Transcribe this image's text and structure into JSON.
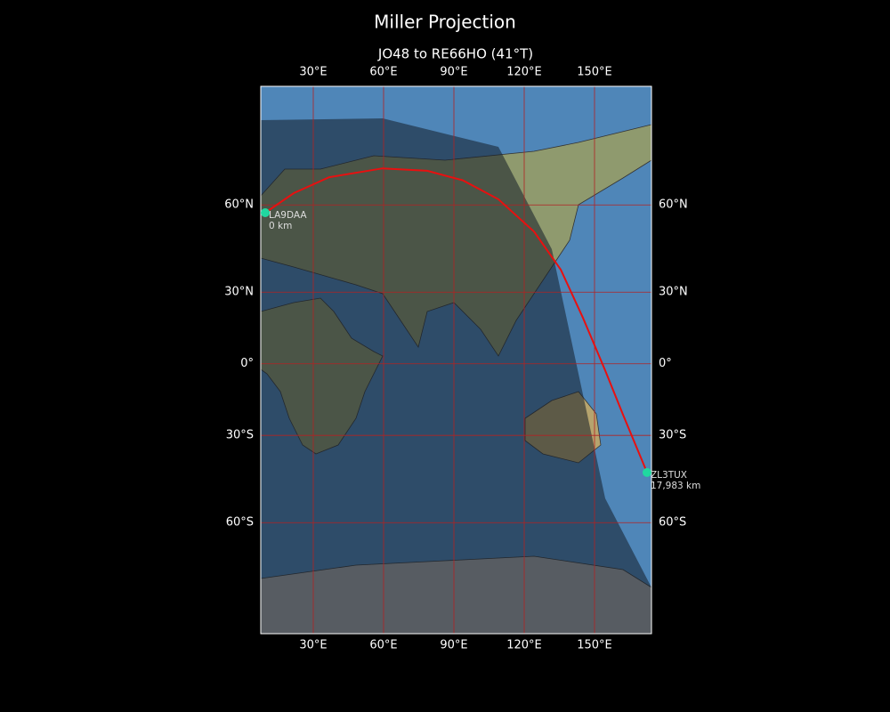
{
  "chart_data": {
    "type": "map",
    "projection": "miller",
    "title": "Miller Projection",
    "subtitle": "JO48 to RE66HO (41°T)",
    "xlim": [
      7.6,
      174.3
    ],
    "ylim": [
      -84.7,
      85.9
    ],
    "xticks": [
      {
        "value": 30,
        "label": "30°E"
      },
      {
        "value": 60,
        "label": "60°E"
      },
      {
        "value": 90,
        "label": "90°E"
      },
      {
        "value": 120,
        "label": "120°E"
      },
      {
        "value": 150,
        "label": "150°E"
      }
    ],
    "yticks": [
      {
        "value": 60,
        "label": "60°N"
      },
      {
        "value": 30,
        "label": "30°N"
      },
      {
        "value": 0,
        "label": "0°"
      },
      {
        "value": -30,
        "label": "30°S"
      },
      {
        "value": -60,
        "label": "60°S"
      }
    ],
    "grid": true,
    "grid_color": "#b22222",
    "route": {
      "color": "#e81010",
      "lon": [
        9.5,
        21.7,
        36.8,
        59.6,
        78.6,
        93.8,
        109.0,
        124.2,
        135.6,
        145.1,
        154.6,
        162.2,
        172.4
      ],
      "lat": [
        57.7,
        63.3,
        67.5,
        69.7,
        69.1,
        66.7,
        61.6,
        51.8,
        38.6,
        19.5,
        -3.0,
        -21.7,
        -43.9
      ]
    },
    "stations": [
      {
        "name": "LA9DAA",
        "distance": "0 km",
        "lon": 9.5,
        "lat": 57.7,
        "color": "#20d8a0"
      },
      {
        "name": "ZL3TUX",
        "distance": "17,983 km",
        "lon": 172.4,
        "lat": -43.9,
        "color": "#20d8a0"
      }
    ]
  }
}
